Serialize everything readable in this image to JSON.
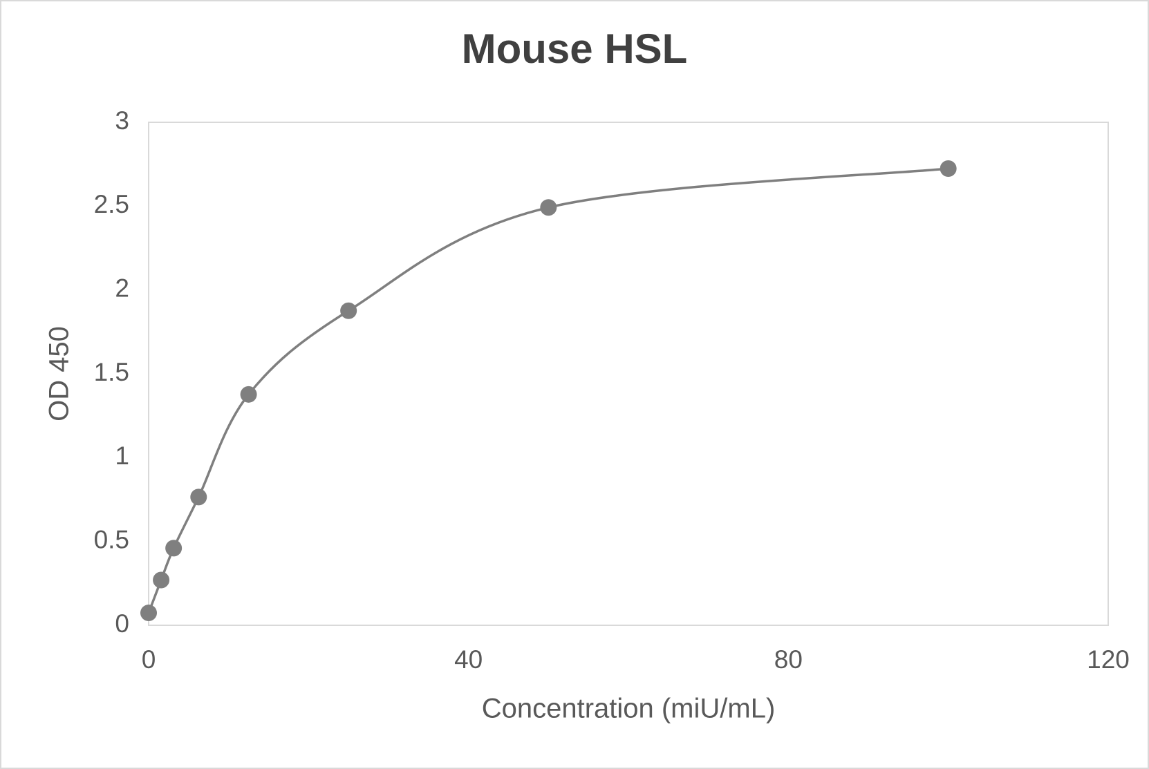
{
  "chart_data": {
    "type": "scatter",
    "title": "Mouse HSL",
    "x_label": "Concentration (miU/mL)",
    "y_label": "OD 450",
    "smooth": true,
    "series": [
      {
        "color": "#7f7f7f",
        "x": [
          0,
          1.5625,
          3.125,
          6.25,
          12.5,
          25,
          50,
          100
        ],
        "values": [
          0.074,
          0.27,
          0.46,
          0.765,
          1.377,
          1.876,
          2.492,
          2.724
        ]
      }
    ],
    "xlim": [
      0,
      120
    ],
    "xticks": [
      0,
      40,
      80,
      120
    ],
    "ylim": [
      0,
      3
    ],
    "yticks": [
      0,
      0.5,
      1,
      1.5,
      2,
      2.5,
      3
    ]
  }
}
